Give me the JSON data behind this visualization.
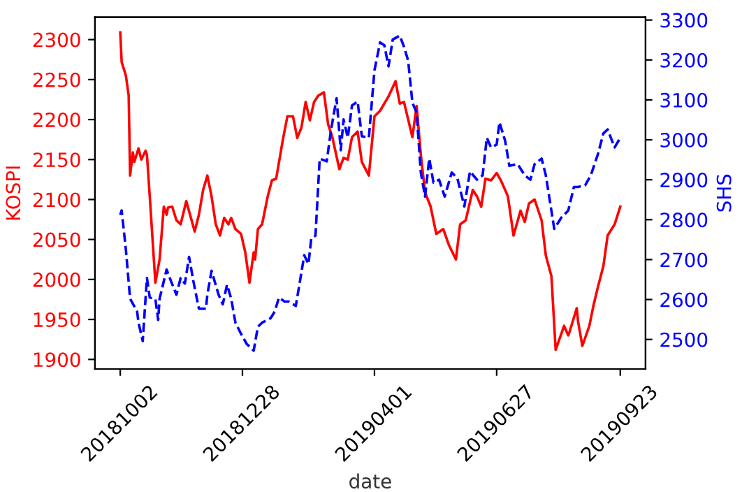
{
  "chart_data": {
    "type": "line",
    "xlabel": "date",
    "ylabel": "KOSPI",
    "y2label": "SHS",
    "xlim": [
      "2018-09-14",
      "2019-10-11"
    ],
    "xticks": [
      {
        "value": "2018-10-02",
        "label": "20181002"
      },
      {
        "value": "2018-12-28",
        "label": "20181228"
      },
      {
        "value": "2019-04-01",
        "label": "20190401"
      },
      {
        "value": "2019-06-27",
        "label": "20190627"
      },
      {
        "value": "2019-09-23",
        "label": "20190923"
      }
    ],
    "ylim": [
      1888,
      2328
    ],
    "yticks": [
      1900,
      1950,
      2000,
      2050,
      2100,
      2150,
      2200,
      2250,
      2300
    ],
    "y2lim": [
      2426,
      3307
    ],
    "y2ticks": [
      2500,
      2600,
      2700,
      2800,
      2900,
      3000,
      3100,
      3200,
      3300
    ],
    "series": [
      {
        "color": "#ff0000",
        "line_style": "solid",
        "x": [
          "2018-10-02",
          "2018-10-03",
          "2018-10-06",
          "2018-10-08",
          "2018-10-09",
          "2018-10-11",
          "2018-10-12",
          "2018-10-15",
          "2018-10-17",
          "2018-10-20",
          "2018-10-21",
          "2018-10-23",
          "2018-10-27",
          "2018-10-30",
          "2018-11-02",
          "2018-11-04",
          "2018-11-05",
          "2018-11-08",
          "2018-11-11",
          "2018-11-14",
          "2018-11-18",
          "2018-11-24",
          "2018-11-27",
          "2018-11-30",
          "2018-12-03",
          "2018-12-06",
          "2018-12-09",
          "2018-12-12",
          "2018-12-15",
          "2018-12-18",
          "2018-12-20",
          "2018-12-23",
          "2018-12-27",
          "2018-12-30",
          "2019-01-02",
          "2019-01-05",
          "2019-01-06",
          "2019-01-08",
          "2019-01-11",
          "2019-01-15",
          "2019-01-18",
          "2019-01-21",
          "2019-01-26",
          "2019-01-29",
          "2019-02-02",
          "2019-02-05",
          "2019-02-08",
          "2019-02-11",
          "2019-02-14",
          "2019-02-17",
          "2019-02-20",
          "2019-02-24",
          "2019-02-27",
          "2019-03-02",
          "2019-03-07",
          "2019-03-10",
          "2019-03-13",
          "2019-03-16",
          "2019-03-20",
          "2019-03-23",
          "2019-03-28",
          "2019-04-01",
          "2019-04-05",
          "2019-04-11",
          "2019-04-16",
          "2019-04-19",
          "2019-04-22",
          "2019-04-28",
          "2019-05-01",
          "2019-05-04",
          "2019-05-07",
          "2019-05-11",
          "2019-05-15",
          "2019-05-20",
          "2019-05-24",
          "2019-05-29",
          "2019-06-01",
          "2019-06-05",
          "2019-06-10",
          "2019-06-13",
          "2019-06-16",
          "2019-06-19",
          "2019-06-23",
          "2019-06-27",
          "2019-06-30",
          "2019-07-05",
          "2019-07-09",
          "2019-07-14",
          "2019-07-17",
          "2019-07-20",
          "2019-07-24",
          "2019-07-29",
          "2019-08-01",
          "2019-08-05",
          "2019-08-08",
          "2019-08-14",
          "2019-08-17",
          "2019-08-18",
          "2019-08-23",
          "2019-08-24",
          "2019-08-27",
          "2019-09-01",
          "2019-09-04",
          "2019-09-07",
          "2019-09-11",
          "2019-09-14",
          "2019-09-19",
          "2019-09-23"
        ],
        "values": [
          2309,
          2272,
          2255,
          2230,
          2130,
          2159,
          2147,
          2164,
          2150,
          2161,
          2156,
          2104,
          1996,
          2025,
          2091,
          2081,
          2090,
          2091,
          2074,
          2069,
          2098,
          2060,
          2081,
          2112,
          2130,
          2104,
          2069,
          2055,
          2077,
          2069,
          2077,
          2063,
          2057,
          2034,
          1996,
          2034,
          2025,
          2063,
          2069,
          2104,
          2124,
          2126,
          2177,
          2204,
          2204,
          2177,
          2190,
          2222,
          2199,
          2222,
          2230,
          2234,
          2194,
          2178,
          2138,
          2152,
          2150,
          2178,
          2185,
          2147,
          2130,
          2204,
          2211,
          2229,
          2248,
          2220,
          2222,
          2178,
          2217,
          2156,
          2109,
          2091,
          2057,
          2063,
          2043,
          2025,
          2069,
          2074,
          2112,
          2104,
          2091,
          2126,
          2124,
          2133,
          2124,
          2104,
          2055,
          2086,
          2072,
          2095,
          2100,
          2074,
          2030,
          2004,
          1912,
          1942,
          1930,
          1935,
          1964,
          1947,
          1917,
          1942,
          1968,
          1990,
          2017,
          2055,
          2069,
          2091
        ]
      },
      {
        "color": "#0000ff",
        "line_style": "dashed",
        "axis": "y2",
        "x": [
          "2018-10-02",
          "2018-10-03",
          "2018-10-06",
          "2018-10-09",
          "2018-10-14",
          "2018-10-15",
          "2018-10-18",
          "2018-10-20",
          "2018-10-21",
          "2018-10-23",
          "2018-10-27",
          "2018-10-29",
          "2018-10-30",
          "2018-11-04",
          "2018-11-07",
          "2018-11-11",
          "2018-11-14",
          "2018-11-17",
          "2018-11-20",
          "2018-11-23",
          "2018-11-27",
          "2018-12-02",
          "2018-12-03",
          "2018-12-06",
          "2018-12-11",
          "2018-12-14",
          "2018-12-17",
          "2018-12-20",
          "2018-12-23",
          "2018-12-27",
          "2018-12-31",
          "2019-01-05",
          "2019-01-08",
          "2019-01-11",
          "2019-01-17",
          "2019-01-20",
          "2019-01-23",
          "2019-01-27",
          "2019-01-30",
          "2019-02-04",
          "2019-02-07",
          "2019-02-10",
          "2019-02-13",
          "2019-02-15",
          "2019-02-18",
          "2019-02-21",
          "2019-02-26",
          "2019-03-01",
          "2019-03-05",
          "2019-03-08",
          "2019-03-10",
          "2019-03-13",
          "2019-03-16",
          "2019-03-20",
          "2019-03-23",
          "2019-03-28",
          "2019-04-01",
          "2019-04-05",
          "2019-04-08",
          "2019-04-11",
          "2019-04-14",
          "2019-04-19",
          "2019-04-22",
          "2019-04-25",
          "2019-04-28",
          "2019-05-01",
          "2019-05-04",
          "2019-05-07",
          "2019-05-10",
          "2019-05-13",
          "2019-05-17",
          "2019-05-21",
          "2019-05-26",
          "2019-05-30",
          "2019-06-04",
          "2019-06-08",
          "2019-06-13",
          "2019-06-17",
          "2019-06-20",
          "2019-06-23",
          "2019-06-27",
          "2019-06-29",
          "2019-07-03",
          "2019-07-06",
          "2019-07-12",
          "2019-07-17",
          "2019-07-21",
          "2019-07-24",
          "2019-07-29",
          "2019-08-01",
          "2019-08-07",
          "2019-08-12",
          "2019-08-17",
          "2019-08-21",
          "2019-08-24",
          "2019-08-29",
          "2019-09-02",
          "2019-09-07",
          "2019-09-11",
          "2019-09-14",
          "2019-09-19",
          "2019-09-23"
        ],
        "values": [
          2812,
          2823,
          2725,
          2602,
          2570,
          2542,
          2496,
          2602,
          2654,
          2605,
          2602,
          2549,
          2602,
          2675,
          2647,
          2612,
          2654,
          2640,
          2707,
          2647,
          2577,
          2577,
          2612,
          2672,
          2612,
          2588,
          2637,
          2602,
          2542,
          2514,
          2489,
          2472,
          2532,
          2542,
          2553,
          2570,
          2605,
          2595,
          2595,
          2584,
          2647,
          2711,
          2689,
          2753,
          2760,
          2953,
          2946,
          3023,
          3104,
          2974,
          3051,
          3005,
          3086,
          3096,
          3009,
          3005,
          3174,
          3244,
          3237,
          3184,
          3251,
          3261,
          3233,
          3198,
          3093,
          3068,
          2918,
          2858,
          2953,
          2893,
          2900,
          2858,
          2918,
          2904,
          2833,
          2921,
          2900,
          2911,
          3005,
          2981,
          2988,
          3044,
          2998,
          2935,
          2939,
          2911,
          2900,
          2939,
          2953,
          2911,
          2777,
          2805,
          2823,
          2882,
          2882,
          2886,
          2911,
          2963,
          3016,
          3026,
          2981,
          3005
        ]
      }
    ]
  }
}
